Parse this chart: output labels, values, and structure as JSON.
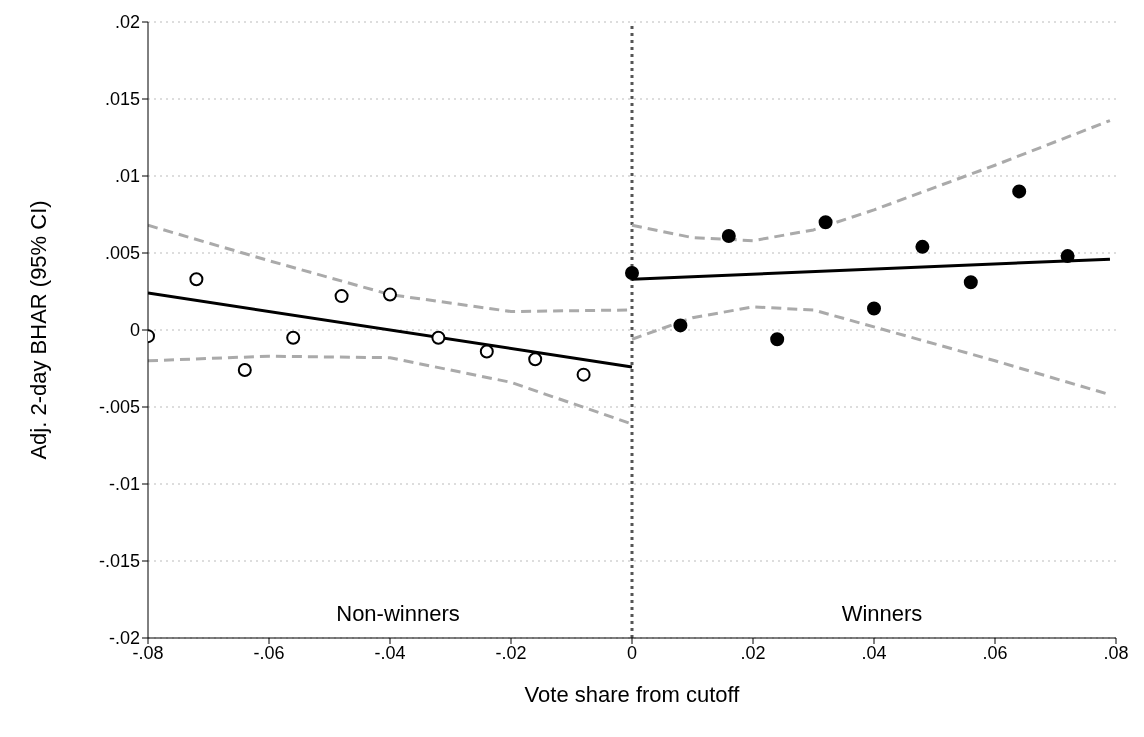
{
  "chart_data": {
    "type": "scatter",
    "xlabel": "Vote share from cutoff",
    "ylabel": "Adj. 2-day BHAR (95% CI)",
    "xlim": [
      -0.08,
      0.08
    ],
    "ylim": [
      -0.02,
      0.02
    ],
    "xticks": [
      {
        "value": -0.08,
        "label": "-.08"
      },
      {
        "value": -0.06,
        "label": "-.06"
      },
      {
        "value": -0.04,
        "label": "-.04"
      },
      {
        "value": -0.02,
        "label": "-.02"
      },
      0,
      {
        "value": 0.02,
        "label": ".02"
      },
      {
        "value": 0.04,
        "label": ".04"
      },
      {
        "value": 0.06,
        "label": ".06"
      },
      {
        "value": 0.08,
        "label": ".08"
      }
    ],
    "yticks": [
      {
        "value": -0.02,
        "label": "-.02"
      },
      {
        "value": -0.015,
        "label": "-.015"
      },
      {
        "value": -0.01,
        "label": "-.01"
      },
      {
        "value": -0.005,
        "label": "-.005"
      },
      0,
      {
        "value": 0.005,
        "label": ".005"
      },
      {
        "value": 0.01,
        "label": ".01"
      },
      {
        "value": 0.015,
        "label": ".015"
      },
      {
        "value": 0.02,
        "label": ".02"
      }
    ],
    "grid": "y",
    "series": [
      {
        "marker": "circle",
        "color": "#000000",
        "x": [
          -0.08,
          -0.072,
          -0.064,
          -0.056,
          -0.048,
          -0.04,
          -0.032,
          -0.024,
          -0.016,
          -0.008
        ],
        "values": [
          -0.0004,
          0.0033,
          -0.0026,
          -0.0005,
          0.0022,
          0.0023,
          -0.0005,
          -0.0014,
          -0.0019,
          -0.0029
        ]
      },
      {
        "marker": "circle",
        "color": "#000000",
        "x": [
          0,
          0.008,
          0.016,
          0.024,
          0.032,
          0.04,
          0.048,
          0.056,
          0.064,
          0.072
        ],
        "values": [
          0.0037,
          0.0003,
          0.0061,
          -0.0006,
          0.007,
          0.0014,
          0.0054,
          0.0031,
          0.009,
          0.0048
        ]
      },
      {
        "type": "line",
        "line_style": "solid",
        "color": "#000000",
        "x": [
          -0.08,
          0
        ],
        "values": [
          0.0024,
          -0.0024
        ]
      },
      {
        "type": "line",
        "line_style": "solid",
        "color": "#000000",
        "x": [
          0,
          0.079
        ],
        "values": [
          0.0033,
          0.0046
        ]
      },
      {
        "type": "line",
        "line_style": "dashed",
        "color": "#aaaaaa",
        "x": [
          -0.08,
          -0.06,
          -0.04,
          -0.02,
          0
        ],
        "values": [
          0.0068,
          0.0045,
          0.0023,
          0.0012,
          0.0013
        ]
      },
      {
        "type": "line",
        "line_style": "dashed",
        "color": "#aaaaaa",
        "x": [
          -0.08,
          -0.06,
          -0.04,
          -0.02,
          0
        ],
        "values": [
          -0.002,
          -0.0017,
          -0.0018,
          -0.0034,
          -0.0061
        ]
      },
      {
        "type": "line",
        "line_style": "dashed",
        "color": "#aaaaaa",
        "x": [
          0,
          0.01,
          0.02,
          0.03,
          0.04,
          0.06,
          0.079
        ],
        "values": [
          0.0068,
          0.006,
          0.0058,
          0.0065,
          0.0078,
          0.0107,
          0.0136
        ]
      },
      {
        "type": "line",
        "line_style": "dashed",
        "color": "#aaaaaa",
        "x": [
          0,
          0.01,
          0.02,
          0.03,
          0.04,
          0.06,
          0.079
        ],
        "values": [
          -0.0006,
          0.0008,
          0.0015,
          0.0013,
          0.0002,
          -0.002,
          -0.0042
        ]
      }
    ],
    "ref_lines": [
      {
        "axis": "x",
        "value": 0,
        "color": "#555555",
        "line_style": "dotted"
      }
    ],
    "annotations": [
      "Non-winners",
      "Winners"
    ]
  }
}
